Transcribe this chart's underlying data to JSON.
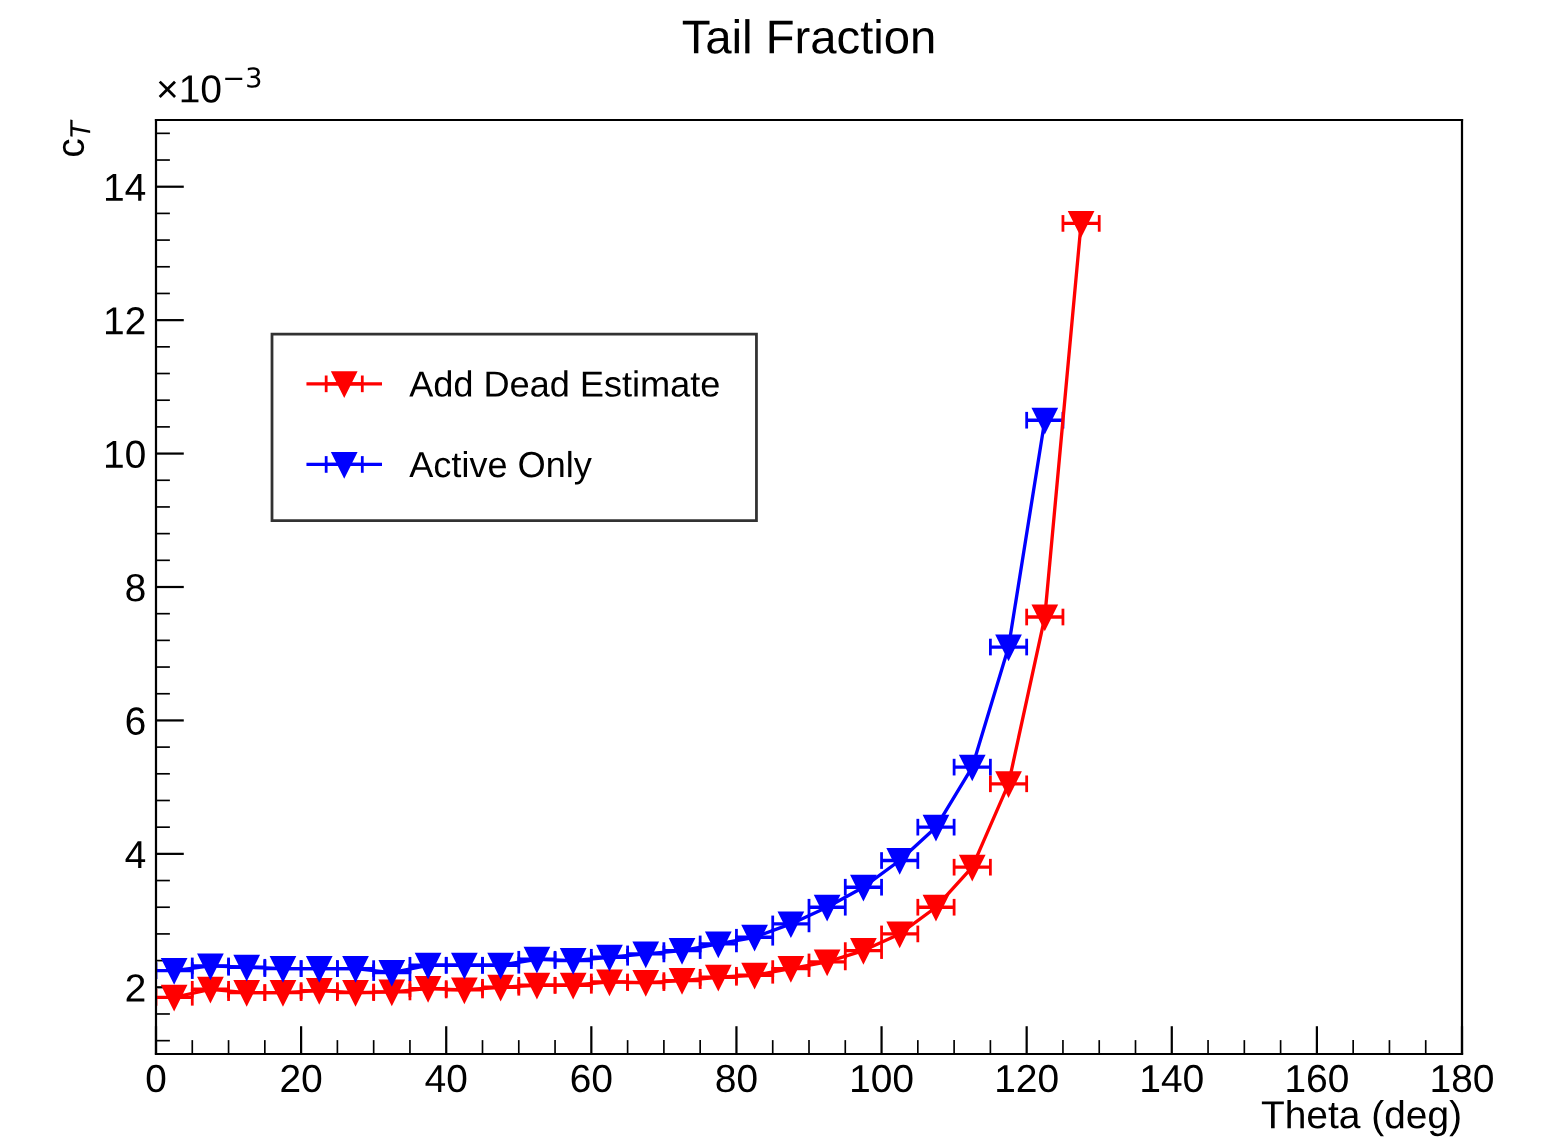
{
  "chart_data": {
    "type": "line",
    "title": "Tail Fraction",
    "xlabel": "Theta (deg)",
    "ylabel": "c$_{T}$",
    "annotations": [
      "×10$^{−3}$"
    ],
    "xlim": [
      0,
      180
    ],
    "xticks": [
      0,
      20,
      40,
      60,
      80,
      100,
      120,
      140,
      160,
      180
    ],
    "ylim": [
      1,
      15
    ],
    "yticks": [
      2,
      4,
      6,
      8,
      10,
      12,
      14
    ],
    "legend": "left",
    "grid": false,
    "marker": "triangle",
    "line_style": "solid",
    "series": [
      {
        "name": "Add Dead Estimate",
        "color": "#ff0000",
        "x": [
          2.5,
          7.5,
          12.5,
          17.5,
          22.5,
          27.5,
          32.5,
          37.5,
          42.5,
          47.5,
          52.5,
          57.5,
          62.5,
          67.5,
          72.5,
          77.5,
          82.5,
          87.5,
          92.5,
          97.5,
          102.5,
          107.5,
          112.5,
          117.5,
          122.5,
          127.5
        ],
        "values": [
          1.85,
          1.97,
          1.92,
          1.92,
          1.95,
          1.92,
          1.93,
          1.98,
          1.96,
          2.0,
          2.03,
          2.03,
          2.08,
          2.07,
          2.1,
          2.15,
          2.18,
          2.28,
          2.38,
          2.55,
          2.8,
          3.2,
          3.8,
          5.05,
          7.55,
          13.45
        ],
        "xerrors": [
          2.5,
          2.5,
          2.5,
          2.5,
          2.5,
          2.5,
          2.5,
          2.5,
          2.5,
          2.5,
          2.5,
          2.5,
          2.5,
          2.5,
          2.5,
          2.5,
          2.5,
          2.5,
          2.5,
          2.5,
          2.5,
          2.5,
          2.5,
          2.5,
          2.5,
          2.5
        ]
      },
      {
        "name": "Active Only",
        "color": "#0000ff",
        "x": [
          2.5,
          7.5,
          12.5,
          17.5,
          22.5,
          27.5,
          32.5,
          37.5,
          42.5,
          47.5,
          52.5,
          57.5,
          62.5,
          67.5,
          72.5,
          77.5,
          82.5,
          87.5,
          92.5,
          97.5,
          102.5,
          107.5,
          112.5,
          117.5,
          122.5
        ],
        "values": [
          2.25,
          2.32,
          2.3,
          2.28,
          2.28,
          2.28,
          2.22,
          2.33,
          2.33,
          2.33,
          2.42,
          2.4,
          2.45,
          2.5,
          2.55,
          2.65,
          2.75,
          2.95,
          3.2,
          3.5,
          3.9,
          4.4,
          5.3,
          7.1,
          10.5
        ],
        "xerrors": [
          2.5,
          2.5,
          2.5,
          2.5,
          2.5,
          2.5,
          2.5,
          2.5,
          2.5,
          2.5,
          2.5,
          2.5,
          2.5,
          2.5,
          2.5,
          2.5,
          2.5,
          2.5,
          2.5,
          2.5,
          2.5,
          2.5,
          2.5,
          2.5,
          2.5
        ]
      }
    ]
  }
}
